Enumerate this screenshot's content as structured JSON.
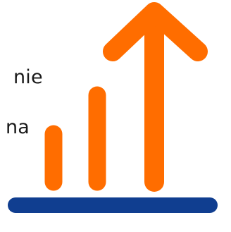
{
  "text": {
    "fragment_top": "nie",
    "fragment_bottom": "na"
  },
  "colors": {
    "accent": "#ff6d00",
    "base": "#103e90",
    "text": "#1a1a1a"
  },
  "icons": {
    "growth_icon": "growth-arrow-icon"
  }
}
